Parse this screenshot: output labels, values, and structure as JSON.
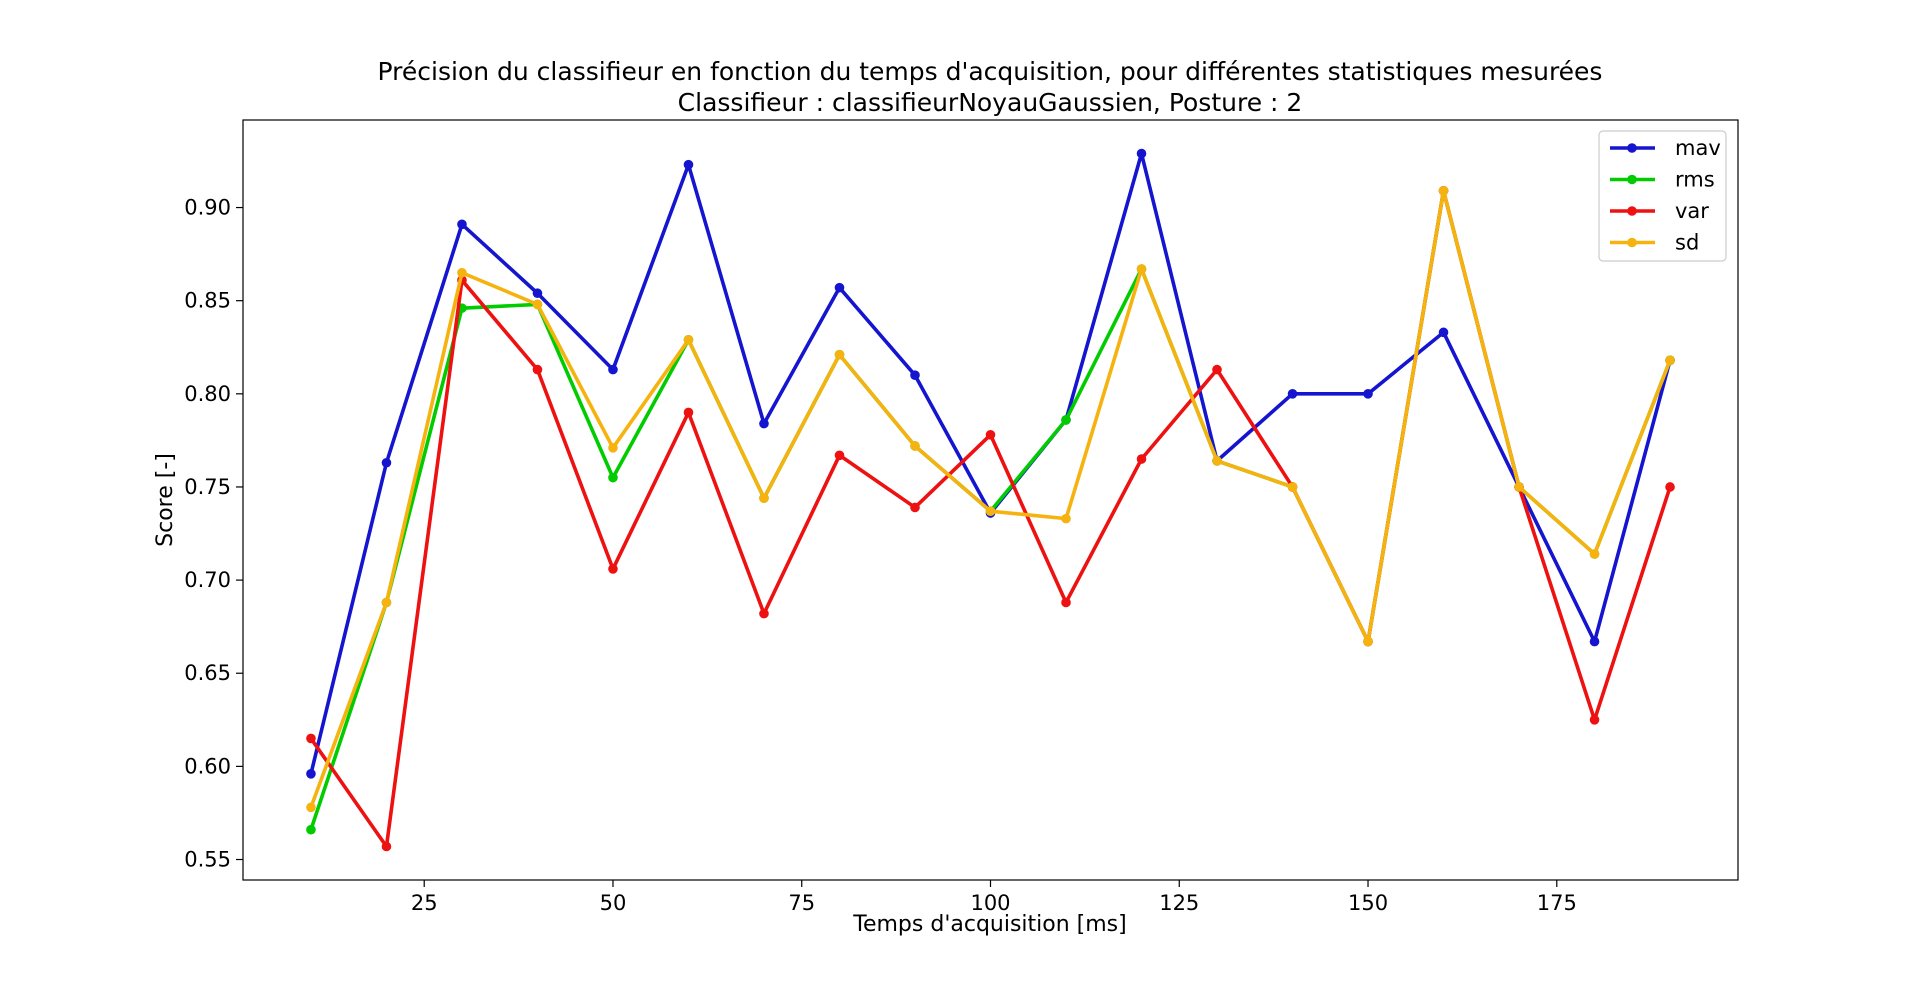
{
  "chart_data": {
    "type": "line",
    "title": "Précision du classifieur en fonction du temps d'acquisition, pour différentes statistiques mesurées",
    "subtitle": "Classifieur : classifieurNoyauGaussien, Posture : 2",
    "xlabel": "Temps d'acquisition [ms]",
    "ylabel": "Score [-]",
    "xlim": [
      1.0,
      199.0
    ],
    "ylim": [
      0.539,
      0.947
    ],
    "x_ticks": [
      25,
      50,
      75,
      100,
      125,
      150,
      175
    ],
    "x_tick_labels": [
      "25",
      "50",
      "75",
      "100",
      "125",
      "150",
      "175"
    ],
    "y_ticks": [
      0.55,
      0.6,
      0.65,
      0.7,
      0.75,
      0.8,
      0.85,
      0.9
    ],
    "y_tick_labels": [
      "0.55",
      "0.60",
      "0.65",
      "0.70",
      "0.75",
      "0.80",
      "0.85",
      "0.90"
    ],
    "grid": false,
    "legend_position": "top-right",
    "x": [
      10,
      20,
      30,
      40,
      50,
      60,
      70,
      80,
      90,
      100,
      110,
      120,
      130,
      140,
      150,
      160,
      170,
      180,
      190
    ],
    "series": [
      {
        "name": "mav",
        "color": "#1515d0",
        "values": [
          0.596,
          0.763,
          0.891,
          0.854,
          0.813,
          0.923,
          0.784,
          0.857,
          0.81,
          0.736,
          0.786,
          0.929,
          0.764,
          0.8,
          0.8,
          0.833,
          0.75,
          0.667,
          0.818
        ]
      },
      {
        "name": "rms",
        "color": "#00cc00",
        "values": [
          0.566,
          0.688,
          0.846,
          0.848,
          0.755,
          0.829,
          0.744,
          0.821,
          0.772,
          0.737,
          0.786,
          0.867,
          0.764,
          0.75,
          0.667,
          0.909,
          0.75,
          0.714,
          0.818
        ]
      },
      {
        "name": "var",
        "color": "#ee1111",
        "values": [
          0.615,
          0.557,
          0.861,
          0.813,
          0.706,
          0.79,
          0.682,
          0.767,
          0.739,
          0.778,
          0.688,
          0.765,
          0.813,
          0.75,
          0.667,
          0.909,
          0.75,
          0.625,
          0.75
        ]
      },
      {
        "name": "sd",
        "color": "#f6b20f",
        "values": [
          0.578,
          0.688,
          0.865,
          0.848,
          0.771,
          0.829,
          0.744,
          0.821,
          0.772,
          0.737,
          0.733,
          0.867,
          0.764,
          0.75,
          0.667,
          0.909,
          0.75,
          0.714,
          0.818
        ]
      }
    ]
  }
}
